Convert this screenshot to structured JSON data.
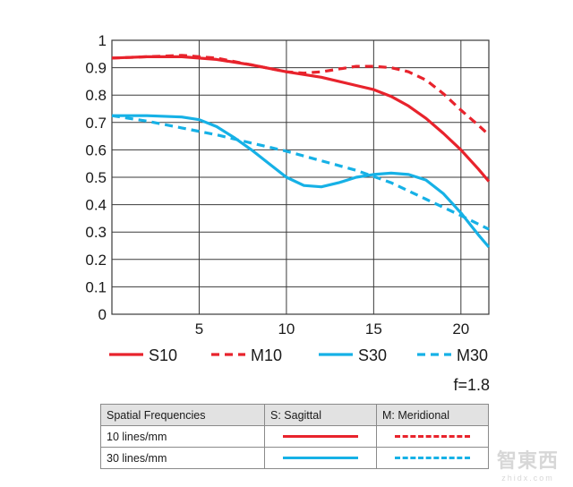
{
  "chart_data": {
    "type": "line",
    "title": "",
    "xlabel": "",
    "ylabel": "",
    "xlim": [
      0,
      21.6
    ],
    "ylim": [
      0,
      1
    ],
    "x_ticks": [
      5,
      10,
      15,
      20
    ],
    "y_ticks": [
      0,
      0.1,
      0.2,
      0.3,
      0.4,
      0.5,
      0.6,
      0.7,
      0.8,
      0.9,
      1
    ],
    "y_tick_labels": [
      "0",
      "0.1",
      "0.2",
      "0.3",
      "0.4",
      "0.5",
      "0.6",
      "0.7",
      "0.8",
      "0.9",
      "1"
    ],
    "grid": true,
    "legend_position": "bottom",
    "series": [
      {
        "name": "S10",
        "color": "#e8232c",
        "style": "solid",
        "x": [
          0,
          2,
          4,
          6,
          8,
          10,
          12,
          14,
          15,
          16,
          17,
          18,
          19,
          20,
          21,
          21.6
        ],
        "y": [
          0.935,
          0.94,
          0.94,
          0.93,
          0.91,
          0.885,
          0.865,
          0.835,
          0.82,
          0.795,
          0.76,
          0.715,
          0.66,
          0.6,
          0.53,
          0.485
        ]
      },
      {
        "name": "M10",
        "color": "#e8232c",
        "style": "dashed",
        "x": [
          0,
          2,
          4,
          6,
          8,
          10,
          11,
          12,
          13,
          14,
          15,
          16,
          17,
          18,
          19,
          20,
          21,
          21.6
        ],
        "y": [
          0.935,
          0.94,
          0.945,
          0.935,
          0.91,
          0.885,
          0.88,
          0.885,
          0.895,
          0.905,
          0.905,
          0.9,
          0.885,
          0.855,
          0.805,
          0.745,
          0.69,
          0.655
        ]
      },
      {
        "name": "S30",
        "color": "#16b1e6",
        "style": "solid",
        "x": [
          0,
          2,
          4,
          5,
          6,
          7,
          8,
          9,
          10,
          11,
          12,
          13,
          14,
          15,
          16,
          17,
          18,
          19,
          20,
          21,
          21.6
        ],
        "y": [
          0.725,
          0.725,
          0.72,
          0.71,
          0.685,
          0.645,
          0.6,
          0.55,
          0.5,
          0.47,
          0.465,
          0.48,
          0.5,
          0.51,
          0.515,
          0.51,
          0.49,
          0.44,
          0.37,
          0.29,
          0.245
        ]
      },
      {
        "name": "M30",
        "color": "#16b1e6",
        "style": "dashed",
        "x": [
          0,
          2,
          4,
          6,
          8,
          10,
          12,
          14,
          16,
          18,
          20,
          21.6
        ],
        "y": [
          0.725,
          0.705,
          0.68,
          0.655,
          0.625,
          0.595,
          0.56,
          0.525,
          0.48,
          0.42,
          0.36,
          0.31
        ]
      }
    ]
  },
  "aperture": "f=1.8",
  "key_table": {
    "headers": [
      "Spatial Frequencies",
      "S: Sagittal",
      "M: Meridional"
    ],
    "rows": [
      {
        "label": "10 lines/mm",
        "sagittal_color": "#e8232c",
        "meridional_color": "#e8232c"
      },
      {
        "label": "30 lines/mm",
        "sagittal_color": "#16b1e6",
        "meridional_color": "#16b1e6"
      }
    ]
  },
  "watermark": {
    "text": "智東西",
    "sub": "zhidx.com"
  }
}
